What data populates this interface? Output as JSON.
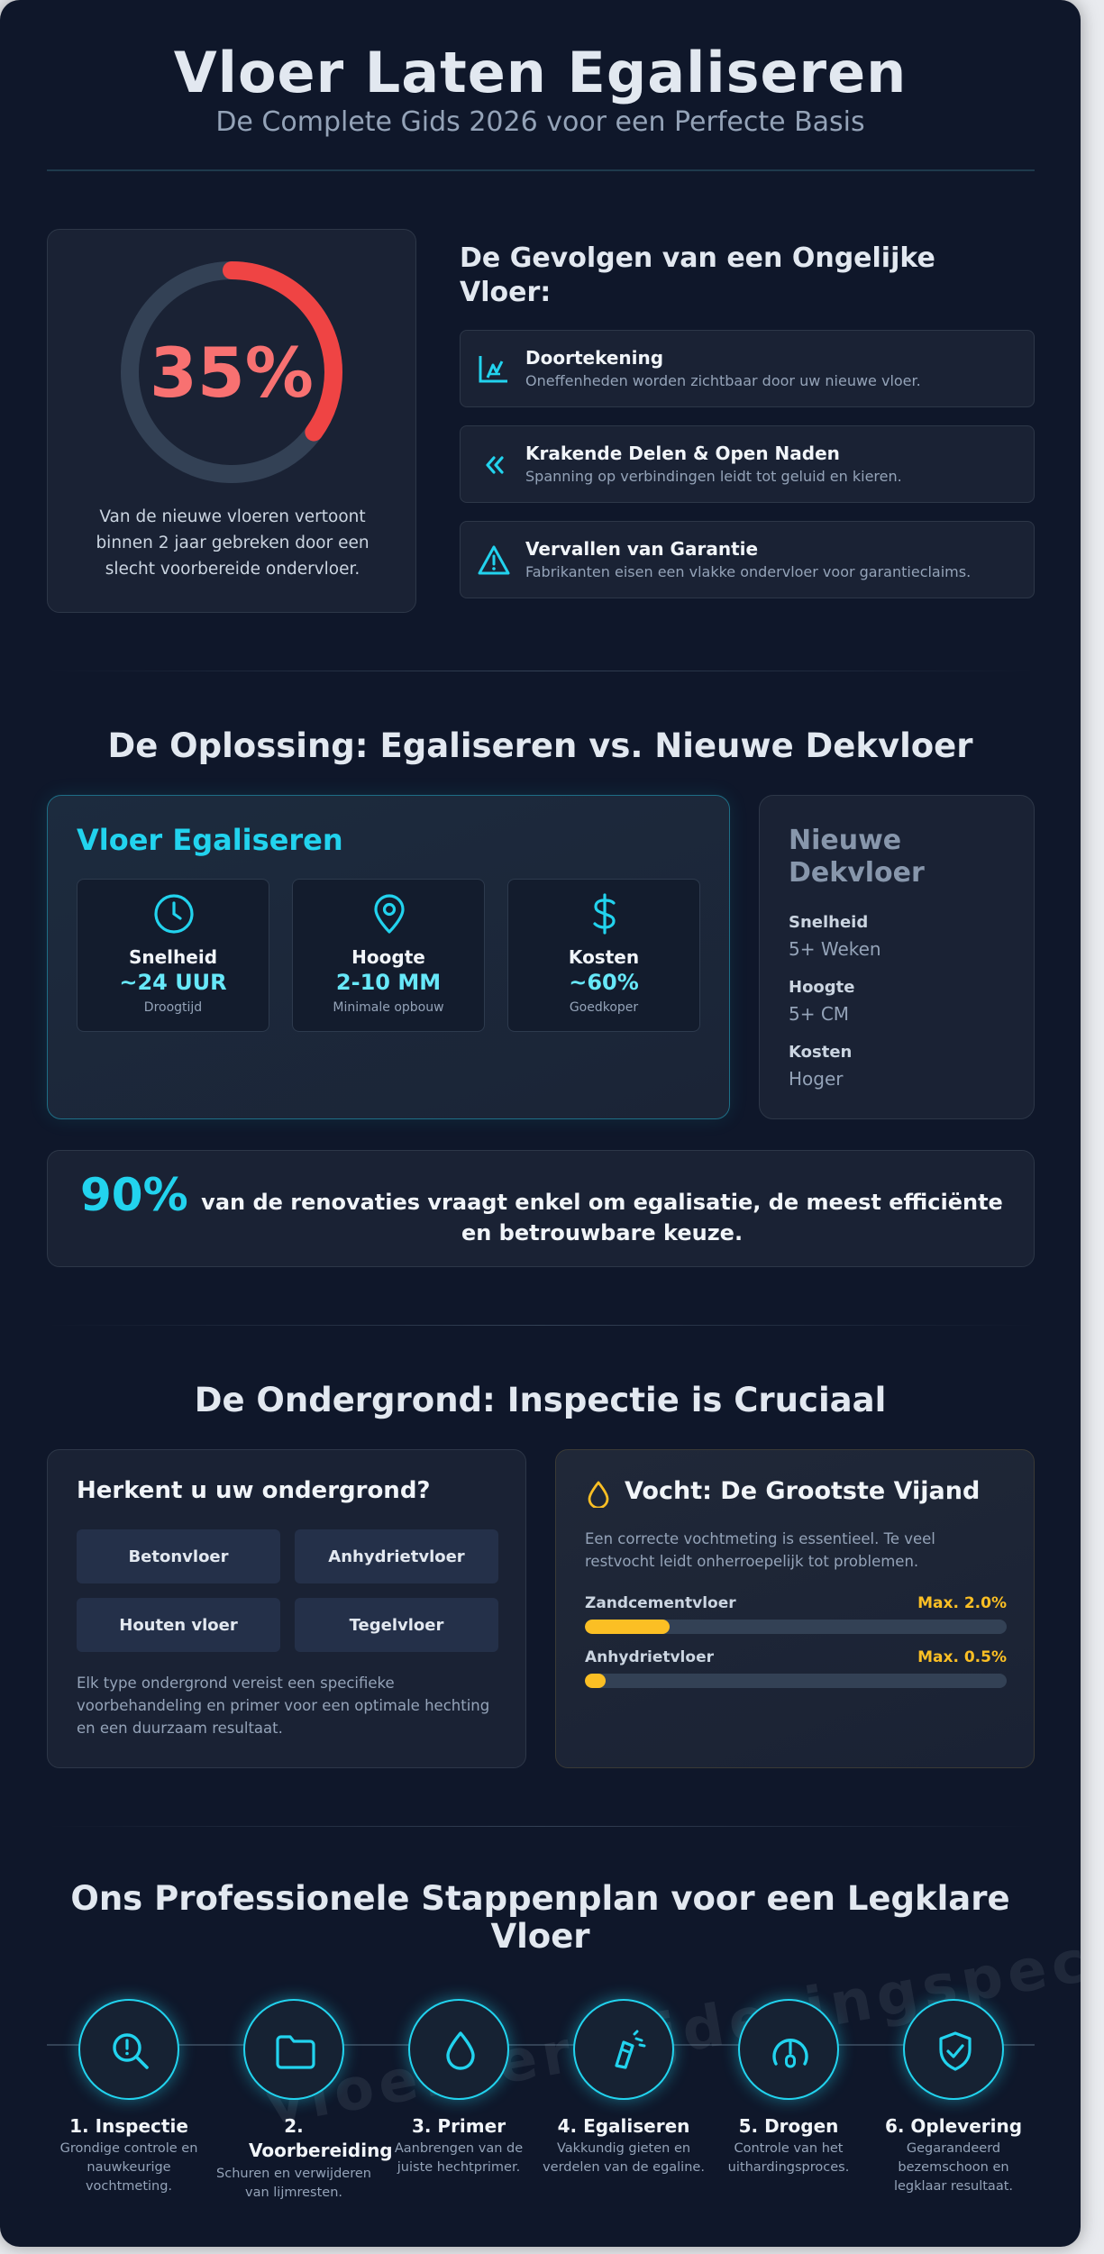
{
  "header": {
    "title": "Vloer Laten Egaliseren",
    "subtitle": "De Complete Gids 2026 voor een Perfecte Basis"
  },
  "gauge": {
    "value_label": "35%",
    "percent": 35,
    "description": "Van de nieuwe vloeren vertoont binnen 2 jaar gebreken door een slecht voorbereide ondervloer.",
    "accent_color": "#ef4444"
  },
  "consequences": {
    "title": "De Gevolgen van een Ongelijke Vloer:",
    "items": [
      {
        "title": "Doortekening",
        "desc": "Oneffenheden worden zichtbaar door uw nieuwe vloer.",
        "icon": "stairs-icon"
      },
      {
        "title": "Krakende Delen & Open Naden",
        "desc": "Spanning op verbindingen leidt tot geluid en kieren.",
        "icon": "chevrons-left-icon"
      },
      {
        "title": "Vervallen van Garantie",
        "desc": "Fabrikanten eisen een vlakke ondervloer voor garantieclaims.",
        "icon": "warning-icon"
      }
    ]
  },
  "solution": {
    "title": "De Oplossing: Egaliseren vs. Nieuwe Dekvloer",
    "egaliseren": {
      "title": "Vloer Egaliseren",
      "metrics": [
        {
          "label": "Snelheid",
          "value": "~24 UUR",
          "sub": "Droogtijd",
          "icon": "clock-icon"
        },
        {
          "label": "Hoogte",
          "value": "2-10 MM",
          "sub": "Minimale opbouw",
          "icon": "map-pin-icon"
        },
        {
          "label": "Kosten",
          "value": "~60%",
          "sub": "Goedkoper",
          "icon": "dollar-icon"
        }
      ]
    },
    "dekvloer": {
      "title": "Nieuwe Dekvloer",
      "rows": [
        {
          "label": "Snelheid",
          "value": "5+ Weken"
        },
        {
          "label": "Hoogte",
          "value": "5+ CM"
        },
        {
          "label": "Kosten",
          "value": "Hoger"
        }
      ]
    }
  },
  "stat": {
    "number": "90%",
    "text": "van de renovaties vraagt enkel om egalisatie, de meest efficiënte en betrouwbare keuze."
  },
  "subfloor": {
    "section_title": "De Ondergrond: Inspectie is Cruciaal",
    "title": "Herkent u uw ondergrond?",
    "options": [
      "Betonvloer",
      "Anhydrietvloer",
      "Houten vloer",
      "Tegelvloer"
    ],
    "note": "Elk type ondergrond vereist een specifieke voorbehandeling en primer voor een optimale hechting en een duurzaam resultaat."
  },
  "moisture": {
    "title": "Vocht: De Grootste Vijand",
    "desc": "Een correcte vochtmeting is essentieel. Te veel restvocht leidt onherroepelijk tot problemen.",
    "bars": [
      {
        "label": "Zandcementvloer",
        "max": "Max. 2.0%",
        "fill_fraction": 0.2
      },
      {
        "label": "Anhydrietvloer",
        "max": "Max. 0.5%",
        "fill_fraction": 0.05
      }
    ],
    "accent_color": "#fbbf24"
  },
  "steps": {
    "title": "Ons Professionele Stappenplan voor een Legklare Vloer",
    "items": [
      {
        "title": "1. Inspectie",
        "desc": "Grondige controle en nauwkeurige vochtmeting.",
        "icon": "search-alert-icon"
      },
      {
        "title": "2. Voorbereiding",
        "desc": "Schuren en verwijderen van lijmresten.",
        "icon": "folder-icon"
      },
      {
        "title": "3. Primer",
        "desc": "Aanbrengen van de juiste hechtprimer.",
        "icon": "droplet-icon"
      },
      {
        "title": "4. Egaliseren",
        "desc": "Vakkundig gieten en verdelen van de egaline.",
        "icon": "pour-icon"
      },
      {
        "title": "5. Drogen",
        "desc": "Controle van het uithardingsproces.",
        "icon": "gauge-icon"
      },
      {
        "title": "6. Oplevering",
        "desc": "Gegarandeerd bezemschoon en legklaar resultaat.",
        "icon": "shield-check-icon"
      }
    ]
  },
  "watermark": "vloerverwijderingspecialist.nl"
}
